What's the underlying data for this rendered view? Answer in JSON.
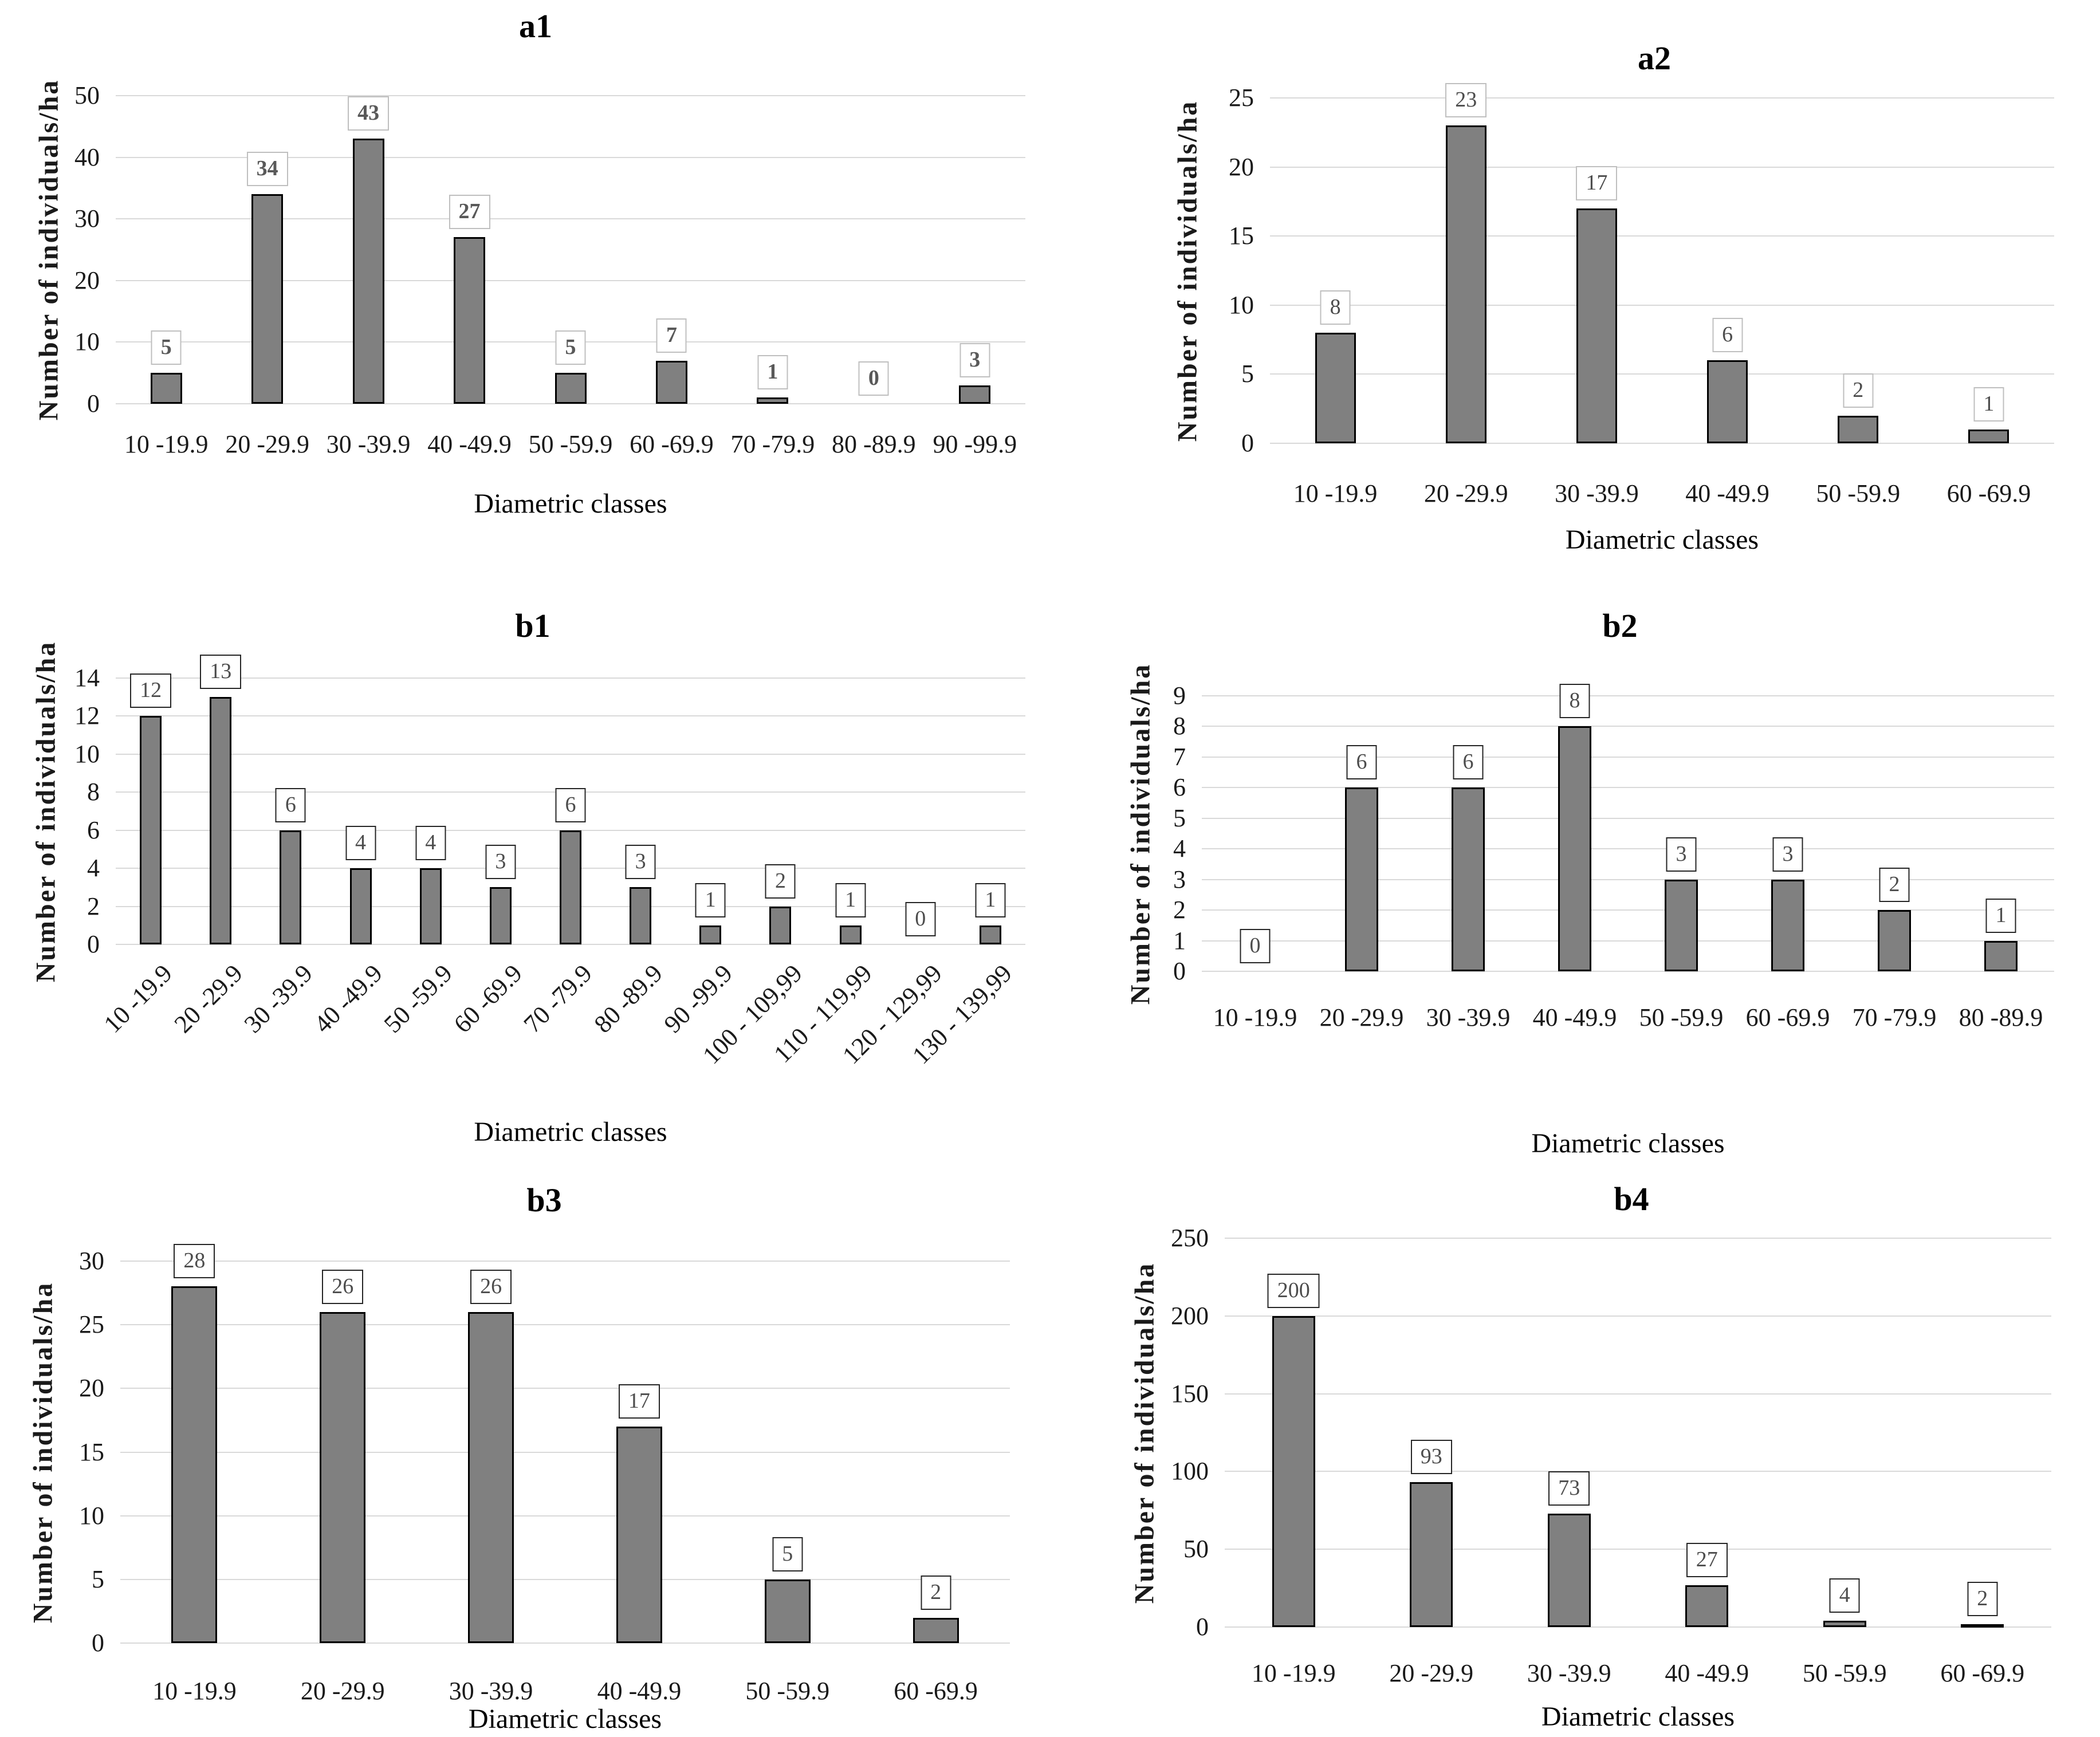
{
  "colors": {
    "bar_fill": "#808080",
    "bar_border": "#000000",
    "gridline": "#d9d9d9",
    "tick_text": "#1a1a1a",
    "title_text": "#000000"
  },
  "chart_data": [
    {
      "id": "a1",
      "type": "bar",
      "title": "a1",
      "xlabel": "Diametric classes",
      "ylabel": "Number of individuals/ha",
      "categories": [
        "10 -19.9",
        "20 -29.9",
        "30 -39.9",
        "40 -49.9",
        "50 -59.9",
        "60 -69.9",
        "70 -79.9",
        "80 -89.9",
        "90 -99.9"
      ],
      "values": [
        5,
        34,
        43,
        27,
        5,
        7,
        1,
        0,
        3
      ],
      "ylim": [
        0,
        50
      ],
      "yticks": [
        "0",
        "10",
        "20",
        "30",
        "40",
        "50"
      ],
      "grid": "horizontal",
      "legend": "none",
      "x_tick_rotation": 0,
      "value_labels": true,
      "value_label_style": {
        "border": "#bfbfbf",
        "color": "#595959",
        "bold": true
      }
    },
    {
      "id": "a2",
      "type": "bar",
      "title": "a2",
      "xlabel": "Diametric classes",
      "ylabel": "Number of individuals/ha",
      "categories": [
        "10 -19.9",
        "20 -29.9",
        "30 -39.9",
        "40 -49.9",
        "50 -59.9",
        "60 -69.9"
      ],
      "values": [
        8,
        23,
        17,
        6,
        2,
        1
      ],
      "ylim": [
        0,
        25
      ],
      "yticks": [
        "0",
        "5",
        "10",
        "15",
        "20",
        "25"
      ],
      "grid": "horizontal",
      "legend": "none",
      "x_tick_rotation": 0,
      "value_labels": true,
      "value_label_style": {
        "border": "#bfbfbf",
        "color": "#4d4d4d",
        "bold": false
      }
    },
    {
      "id": "b1",
      "type": "bar",
      "title": "b1",
      "xlabel": "Diametric classes",
      "ylabel": "Number of individuals/ha",
      "categories": [
        "10 -19.9",
        "20 -29.9",
        "30 -39.9",
        "40 -49.9",
        "50 -59.9",
        "60 -69.9",
        "70 -79.9",
        "80 -89.9",
        "90 -99.9",
        "100 - 109,99",
        "110 - 119,99",
        "120 - 129,99",
        "130 - 139,99"
      ],
      "values": [
        12,
        13,
        6,
        4,
        4,
        3,
        6,
        3,
        1,
        2,
        1,
        0,
        1
      ],
      "ylim": [
        0,
        14
      ],
      "yticks": [
        "0",
        "2",
        "4",
        "6",
        "8",
        "10",
        "12",
        "14"
      ],
      "grid": "horizontal",
      "legend": "none",
      "x_tick_rotation": 45,
      "value_labels": true,
      "value_label_style": {
        "border": "#262626",
        "color": "#4d4d4d",
        "bold": false
      }
    },
    {
      "id": "b2",
      "type": "bar",
      "title": "b2",
      "xlabel": "Diametric classes",
      "ylabel": "Number of individuals/ha",
      "categories": [
        "10 -19.9",
        "20 -29.9",
        "30 -39.9",
        "40 -49.9",
        "50 -59.9",
        "60 -69.9",
        "70 -79.9",
        "80 -89.9"
      ],
      "values": [
        0,
        6,
        6,
        8,
        3,
        3,
        2,
        1
      ],
      "ylim": [
        0,
        9
      ],
      "yticks": [
        "0",
        "1",
        "2",
        "3",
        "4",
        "5",
        "6",
        "7",
        "8",
        "9"
      ],
      "grid": "horizontal",
      "legend": "none",
      "x_tick_rotation": 0,
      "value_labels": true,
      "value_label_style": {
        "border": "#262626",
        "color": "#4d4d4d",
        "bold": false
      }
    },
    {
      "id": "b3",
      "type": "bar",
      "title": "b3",
      "xlabel": "Diametric classes",
      "ylabel": "Number of individuals/ha",
      "categories": [
        "10 -19.9",
        "20 -29.9",
        "30 -39.9",
        "40 -49.9",
        "50 -59.9",
        "60 -69.9"
      ],
      "values": [
        28,
        26,
        26,
        17,
        5,
        2
      ],
      "ylim": [
        0,
        30
      ],
      "yticks": [
        "0",
        "5",
        "10",
        "15",
        "20",
        "25",
        "30"
      ],
      "grid": "horizontal",
      "legend": "none",
      "x_tick_rotation": 0,
      "value_labels": true,
      "value_label_style": {
        "border": "#262626",
        "color": "#4d4d4d",
        "bold": false
      }
    },
    {
      "id": "b4",
      "type": "bar",
      "title": "b4",
      "xlabel": "Diametric classes",
      "ylabel": "Number of individuals/ha",
      "categories": [
        "10 -19.9",
        "20 -29.9",
        "30 -39.9",
        "40 -49.9",
        "50 -59.9",
        "60 -69.9"
      ],
      "values": [
        200,
        93,
        73,
        27,
        4,
        2
      ],
      "ylim": [
        0,
        250
      ],
      "yticks": [
        "0",
        "50",
        "100",
        "150",
        "200",
        "250"
      ],
      "grid": "horizontal",
      "legend": "none",
      "x_tick_rotation": 0,
      "value_labels": true,
      "value_label_style": {
        "border": "#262626",
        "color": "#4d4d4d",
        "bold": false
      }
    }
  ]
}
